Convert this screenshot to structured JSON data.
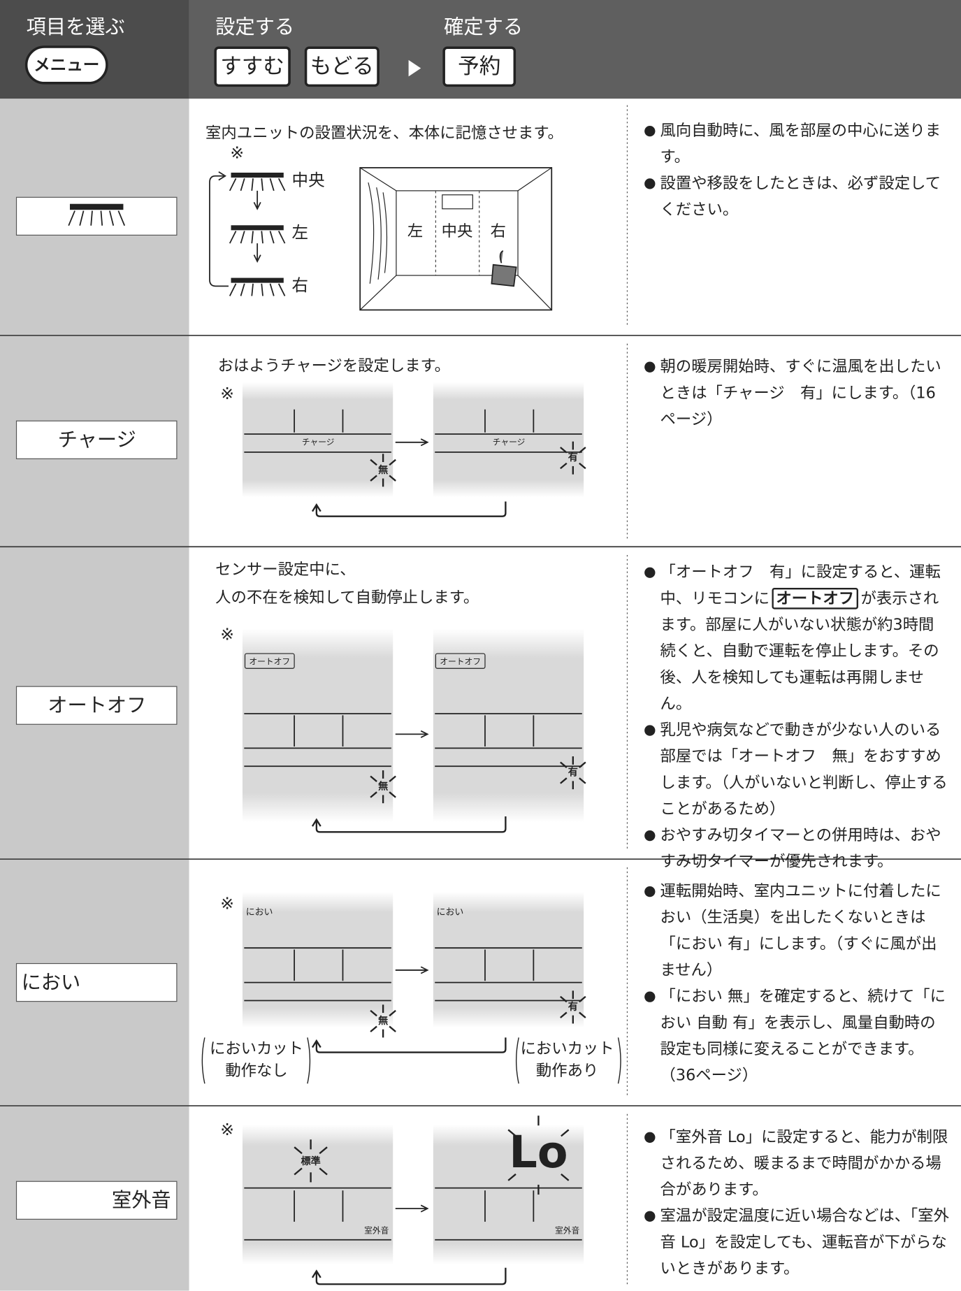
{
  "header": {
    "select_title": "項目を選ぶ",
    "menu_button": "メニュー",
    "set_title": "設定する",
    "next_button": "すすむ",
    "back_button": "もどる",
    "confirm_title": "確定する",
    "reserve_button": "予約"
  },
  "rows": [
    {
      "description": [
        "室内ユニットの設置状況を、本体に記憶させます。"
      ],
      "diagram": {
        "mark": "※",
        "cycle": [
          "中央",
          "左",
          "右"
        ],
        "room": [
          "左",
          "中央",
          "右"
        ]
      },
      "notes": [
        "風向自動時に、風を部屋の中心に送ります。",
        "設置や移設をしたときは、必ず設定してください。"
      ]
    },
    {
      "label": "チャージ",
      "description": [
        "おはようチャージを設定します。"
      ],
      "diagram": {
        "mark": "※",
        "panel_label": "チャージ",
        "states": [
          "無",
          "有"
        ]
      },
      "notes": [
        "朝の暖房開始時、すぐに温風を出したいときは「チャージ　有」にします。（16ページ）"
      ]
    },
    {
      "label": "オートオフ",
      "description": [
        "センサー設定中に、",
        "人の不在を検知して自動停止します。"
      ],
      "diagram": {
        "mark": "※",
        "panel_label": "オートオフ",
        "states": [
          "無",
          "有"
        ]
      },
      "notes": [
        {
          "before": "「オートオフ　有」に設定すると、運転中、リモコンに",
          "badge": "オートオフ",
          "after": "が表示されます。部屋に人がいない状態が約3時間続くと、自動で運転を停止します。その後、人を検知しても運転は再開しません。"
        },
        "乳児や病気などで動きが少ない人のいる部屋では「オートオフ　無」をおすすめします。（人がいないと判断し、停止することがあるため）",
        "おやすみ切タイマーとの併用時は、おやすみ切タイマーが優先されます。"
      ]
    },
    {
      "label": "におい",
      "diagram": {
        "mark": "※",
        "panel_label": "におい",
        "states": [
          "無",
          "有"
        ],
        "captions": [
          [
            "においカット",
            "動作なし"
          ],
          [
            "においカット",
            "動作あり"
          ]
        ]
      },
      "notes": [
        "運転開始時、室内ユニットに付着したにおい（生活臭）を出したくないときは「におい 有」にします。（すぐに風が出ません）",
        "「におい 無」を確定すると、続けて「におい 自動 有」を表示し、風量自動時の設定も同様に変えることができます。（36ページ）"
      ]
    },
    {
      "label": "室外音",
      "diagram": {
        "mark": "※",
        "panel_label": "室外音",
        "states": [
          "標準",
          "Lo"
        ]
      },
      "notes": [
        "「室外音 Lo」に設定すると、能力が制限されるため、暖まるまで時間がかかる場合があります。",
        "室温が設定温度に近い場合などは、「室外音 Lo」を設定しても、運転音が下がらないときがあります。"
      ]
    }
  ]
}
